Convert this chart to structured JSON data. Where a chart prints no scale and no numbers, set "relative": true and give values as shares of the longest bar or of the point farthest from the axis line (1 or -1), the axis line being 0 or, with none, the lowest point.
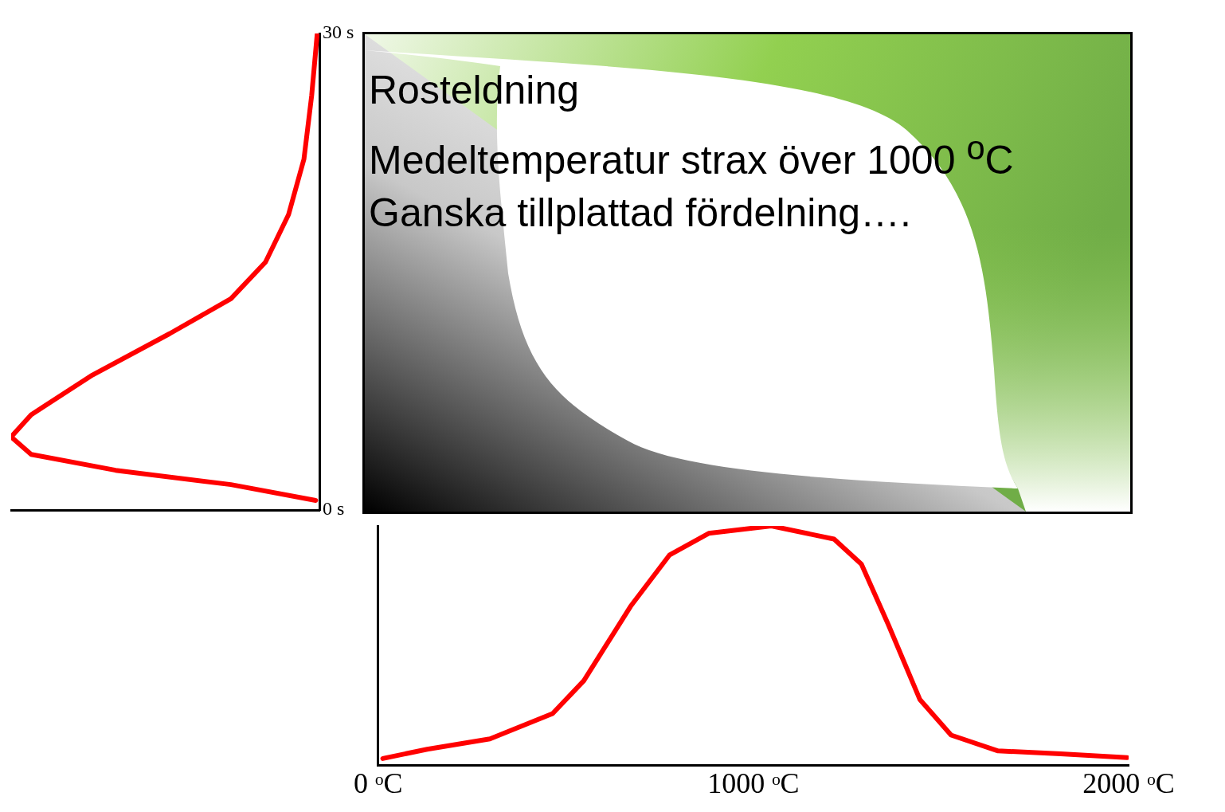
{
  "chart_data": [
    {
      "type": "line",
      "orientation": "horizontal",
      "relative": true,
      "x": [
        0.6,
        1.6,
        2.5,
        3.5,
        4.6,
        6.0,
        8.5,
        11.1,
        13.3,
        15.6,
        18.6,
        22.1,
        26.1,
        30
      ],
      "values": [
        -0.012,
        -0.287,
        -0.661,
        -0.935,
        -1,
        -0.935,
        -0.736,
        -0.486,
        -0.287,
        -0.175,
        -0.1,
        -0.05,
        -0.025,
        -0.007
      ],
      "color": "#ff0000",
      "ylim": [
        0,
        30
      ],
      "yticks": [
        {
          "value": 0,
          "label": "0 s"
        },
        {
          "value": 30,
          "label": "30 s"
        }
      ],
      "grid": false,
      "legend": false,
      "marker": "none",
      "line_style": "solid"
    },
    {
      "type": "other",
      "annotations": [
        "Rosteldning",
        "Medeltemperatur strax över 1000 $^{o}$C",
        "Ganska tillplattad fördelning…."
      ]
    },
    {
      "type": "line",
      "relative": true,
      "x": [
        12.5,
        131,
        298,
        465,
        548,
        673,
        777,
        881,
        1048,
        1215,
        1288,
        1360,
        1444,
        1527,
        1652,
        1819,
        1996
      ],
      "values": [
        0.027,
        0.066,
        0.109,
        0.215,
        0.352,
        0.664,
        0.879,
        0.969,
        1,
        0.945,
        0.84,
        0.586,
        0.273,
        0.125,
        0.059,
        0.047,
        0.031
      ],
      "color": "#ff0000",
      "xlim": [
        0,
        2000
      ],
      "xticks": [
        {
          "value": 0,
          "label": "0 ᵒC"
        },
        {
          "value": 1000,
          "label": "1000 ᵒC"
        },
        {
          "value": 2000,
          "label": "2000 ᵒC"
        }
      ],
      "grid": false,
      "legend": false,
      "marker": "none",
      "line_style": "solid"
    }
  ]
}
